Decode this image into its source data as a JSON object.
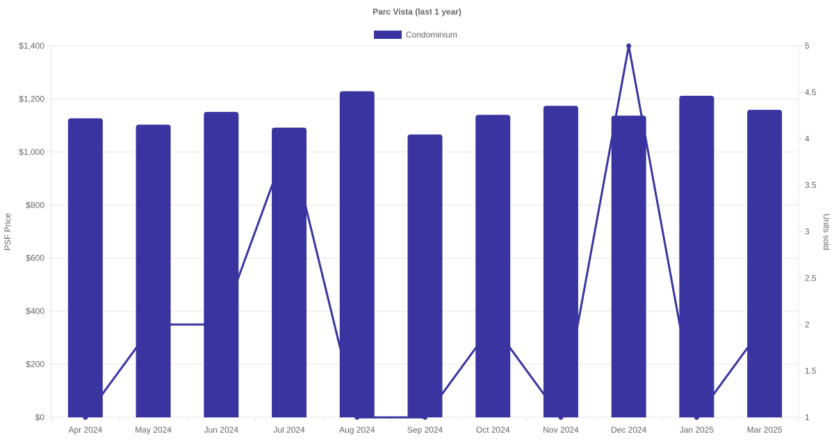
{
  "chart_data": {
    "type": "bar",
    "title": "Parc Vista (last 1 year)",
    "categories": [
      "Apr 2024",
      "May 2024",
      "Jun 2024",
      "Jul 2024",
      "Aug 2024",
      "Sep 2024",
      "Oct 2024",
      "Nov 2024",
      "Dec 2024",
      "Jan 2025",
      "Mar 2025"
    ],
    "series": [
      {
        "name": "Condominium",
        "type": "bar",
        "axis": "left",
        "color": "#3a34a0",
        "values": [
          1127,
          1103,
          1151,
          1092,
          1229,
          1066,
          1140,
          1174,
          1137,
          1212,
          1159
        ]
      },
      {
        "type": "line",
        "axis": "right",
        "color": "#3a34a0",
        "values": [
          1,
          2,
          2,
          4,
          1,
          1,
          2,
          1,
          5,
          1,
          2
        ]
      }
    ],
    "ylabel": "PSF Price",
    "y2label": "Units sold",
    "ylim": [
      0,
      1400
    ],
    "y2lim": [
      1,
      5
    ],
    "yticks": [
      "$0",
      "$200",
      "$400",
      "$600",
      "$800",
      "$1,000",
      "$1,200",
      "$1,400"
    ],
    "y2ticks": [
      "1",
      "1.5",
      "2",
      "2.5",
      "3",
      "3.5",
      "4",
      "4.5",
      "5"
    ],
    "legend": "top-center",
    "grid": true
  }
}
